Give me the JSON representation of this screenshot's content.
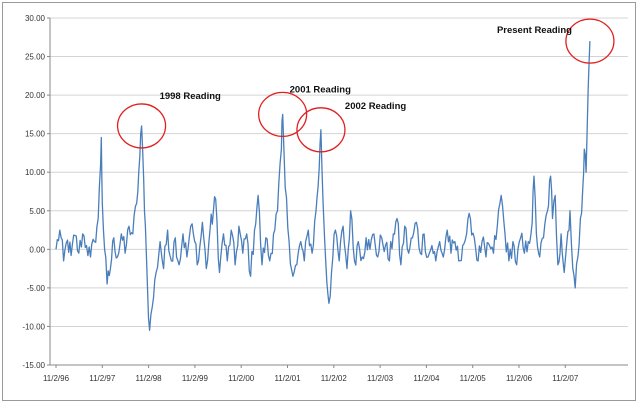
{
  "chart_data": {
    "type": "line",
    "title": "",
    "xlabel": "",
    "ylabel": "",
    "ylim": [
      -15,
      30
    ],
    "y_ticks": [
      "30.00",
      "25.00",
      "20.00",
      "15.00",
      "10.00",
      "5.00",
      "0.00",
      "-5.00",
      "-10.00",
      "-15.00"
    ],
    "x_tick_labels": [
      "11/2/96",
      "11/2/97",
      "11/2/98",
      "11/2/99",
      "11/2/00",
      "11/2/01",
      "11/2/02",
      "11/2/03",
      "11/2/04",
      "11/2/05",
      "11/2/06",
      "11/2/07"
    ],
    "grid": "horizontal",
    "line_color": "#4a7ebb",
    "circle_color": "#e02020",
    "series": [
      {
        "points": [
          [
            "1996-11-02",
            0.0
          ],
          [
            "1996-12-02",
            2.5
          ],
          [
            "1997-01-01",
            -1.5
          ],
          [
            "1997-02-01",
            1.2
          ],
          [
            "1997-03-01",
            -0.8
          ],
          [
            "1997-04-01",
            1.8
          ],
          [
            "1997-05-01",
            -0.5
          ],
          [
            "1997-06-01",
            2.0
          ],
          [
            "1997-07-01",
            0.5
          ],
          [
            "1997-08-01",
            -1.0
          ],
          [
            "1997-09-01",
            1.0
          ],
          [
            "1997-10-01",
            4.0
          ],
          [
            "1997-10-20",
            11.0
          ],
          [
            "1997-10-25",
            14.5
          ],
          [
            "1997-11-02",
            6.0
          ],
          [
            "1997-11-20",
            0.0
          ],
          [
            "1997-12-10",
            -4.5
          ],
          [
            "1998-01-05",
            -2.5
          ],
          [
            "1998-02-01",
            1.5
          ],
          [
            "1998-03-01",
            -1.0
          ],
          [
            "1998-04-01",
            2.0
          ],
          [
            "1998-05-01",
            -0.5
          ],
          [
            "1998-06-01",
            3.0
          ],
          [
            "1998-07-01",
            2.0
          ],
          [
            "1998-08-01",
            6.0
          ],
          [
            "1998-08-25",
            12.0
          ],
          [
            "1998-09-08",
            16.0
          ],
          [
            "1998-09-25",
            9.0
          ],
          [
            "1998-10-08",
            3.0
          ],
          [
            "1998-10-25",
            -5.0
          ],
          [
            "1998-11-10",
            -10.5
          ],
          [
            "1998-12-01",
            -7.5
          ],
          [
            "1999-01-01",
            -3.0
          ],
          [
            "1999-02-01",
            1.0
          ],
          [
            "1999-03-01",
            -2.5
          ],
          [
            "1999-04-01",
            2.5
          ],
          [
            "1999-05-01",
            -1.5
          ],
          [
            "1999-06-01",
            1.5
          ],
          [
            "1999-07-01",
            -2.0
          ],
          [
            "1999-08-01",
            2.0
          ],
          [
            "1999-09-01",
            -1.0
          ],
          [
            "1999-10-01",
            3.0
          ],
          [
            "1999-11-01",
            1.0
          ],
          [
            "1999-12-01",
            -1.5
          ],
          [
            "2000-01-01",
            3.5
          ],
          [
            "2000-02-01",
            -2.5
          ],
          [
            "2000-03-01",
            2.5
          ],
          [
            "2000-04-15",
            6.5
          ],
          [
            "2000-05-15",
            -3.0
          ],
          [
            "2000-06-15",
            2.0
          ],
          [
            "2000-07-15",
            -1.5
          ],
          [
            "2000-08-15",
            2.5
          ],
          [
            "2000-09-15",
            -2.0
          ],
          [
            "2000-10-15",
            3.0
          ],
          [
            "2000-11-15",
            -0.5
          ],
          [
            "2000-12-15",
            2.0
          ],
          [
            "2001-01-15",
            -3.5
          ],
          [
            "2001-02-15",
            2.5
          ],
          [
            "2001-03-15",
            7.0
          ],
          [
            "2001-04-15",
            -2.0
          ],
          [
            "2001-05-15",
            1.5
          ],
          [
            "2001-06-15",
            -1.5
          ],
          [
            "2001-07-15",
            2.0
          ],
          [
            "2001-08-15",
            5.0
          ],
          [
            "2001-09-15",
            13.0
          ],
          [
            "2001-09-25",
            17.5
          ],
          [
            "2001-10-15",
            8.0
          ],
          [
            "2001-11-15",
            1.0
          ],
          [
            "2001-12-15",
            -3.5
          ],
          [
            "2002-01-15",
            -2.0
          ],
          [
            "2002-02-15",
            1.0
          ],
          [
            "2002-03-15",
            -1.5
          ],
          [
            "2002-04-15",
            2.5
          ],
          [
            "2002-05-15",
            -0.5
          ],
          [
            "2002-06-15",
            5.0
          ],
          [
            "2002-07-10",
            10.5
          ],
          [
            "2002-07-24",
            15.5
          ],
          [
            "2002-08-10",
            6.0
          ],
          [
            "2002-09-01",
            -2.0
          ],
          [
            "2002-09-25",
            -7.0
          ],
          [
            "2002-10-15",
            -3.0
          ],
          [
            "2002-11-15",
            2.5
          ],
          [
            "2002-12-15",
            -1.5
          ],
          [
            "2003-01-15",
            3.0
          ],
          [
            "2003-02-15",
            -2.5
          ],
          [
            "2003-03-15",
            5.0
          ],
          [
            "2003-04-15",
            -1.5
          ],
          [
            "2003-05-15",
            1.0
          ],
          [
            "2003-06-15",
            -1.0
          ],
          [
            "2003-07-15",
            1.5
          ],
          [
            "2003-08-15",
            0.0
          ],
          [
            "2003-09-15",
            2.0
          ],
          [
            "2003-10-15",
            -1.0
          ],
          [
            "2003-11-15",
            1.5
          ],
          [
            "2003-12-15",
            0.5
          ],
          [
            "2004-01-15",
            -1.5
          ],
          [
            "2004-02-15",
            2.0
          ],
          [
            "2004-03-15",
            4.0
          ],
          [
            "2004-04-15",
            -2.0
          ],
          [
            "2004-05-15",
            3.0
          ],
          [
            "2004-06-15",
            -0.5
          ],
          [
            "2004-07-15",
            1.5
          ],
          [
            "2004-08-15",
            3.5
          ],
          [
            "2004-09-15",
            -0.5
          ],
          [
            "2004-10-15",
            2.0
          ],
          [
            "2004-11-15",
            -1.0
          ],
          [
            "2004-12-15",
            0.5
          ],
          [
            "2005-01-15",
            -1.5
          ],
          [
            "2005-02-15",
            1.0
          ],
          [
            "2005-03-15",
            -1.0
          ],
          [
            "2005-04-15",
            2.5
          ],
          [
            "2005-05-15",
            -0.5
          ],
          [
            "2005-06-15",
            1.0
          ],
          [
            "2005-07-15",
            -1.5
          ],
          [
            "2005-08-15",
            0.5
          ],
          [
            "2005-09-15",
            2.0
          ],
          [
            "2005-10-15",
            4.0
          ],
          [
            "2005-11-15",
            1.5
          ],
          [
            "2005-12-15",
            -1.5
          ],
          [
            "2006-01-15",
            1.0
          ],
          [
            "2006-02-15",
            -1.0
          ],
          [
            "2006-03-15",
            0.5
          ],
          [
            "2006-04-15",
            -0.5
          ],
          [
            "2006-05-15",
            3.0
          ],
          [
            "2006-06-15",
            7.0
          ],
          [
            "2006-07-15",
            2.0
          ],
          [
            "2006-08-15",
            -1.5
          ],
          [
            "2006-09-15",
            1.0
          ],
          [
            "2006-10-15",
            -2.0
          ],
          [
            "2006-11-15",
            1.5
          ],
          [
            "2006-12-15",
            -0.5
          ],
          [
            "2007-01-15",
            1.0
          ],
          [
            "2007-02-15",
            3.5
          ],
          [
            "2007-03-01",
            9.5
          ],
          [
            "2007-03-20",
            2.0
          ],
          [
            "2007-04-15",
            -1.0
          ],
          [
            "2007-05-15",
            1.5
          ],
          [
            "2007-06-15",
            5.0
          ],
          [
            "2007-07-10",
            9.5
          ],
          [
            "2007-07-25",
            4.0
          ],
          [
            "2007-08-15",
            7.0
          ],
          [
            "2007-09-05",
            -2.0
          ],
          [
            "2007-10-01",
            2.0
          ],
          [
            "2007-10-25",
            -3.0
          ],
          [
            "2007-11-15",
            1.0
          ],
          [
            "2007-12-10",
            5.0
          ],
          [
            "2008-01-01",
            -2.5
          ],
          [
            "2008-01-20",
            -5.0
          ],
          [
            "2008-02-10",
            -1.0
          ],
          [
            "2008-03-01",
            4.0
          ],
          [
            "2008-03-20",
            8.0
          ],
          [
            "2008-04-01",
            13.0
          ],
          [
            "2008-04-15",
            10.0
          ],
          [
            "2008-05-01",
            20.5
          ],
          [
            "2008-05-15",
            27.0
          ]
        ]
      }
    ],
    "annotations": [
      {
        "label": "1998 Reading",
        "x": "1998-09-08",
        "y": 16.0
      },
      {
        "label": "2001 Reading",
        "x": "2001-09-25",
        "y": 17.5
      },
      {
        "label": "2002 Reading",
        "x": "2002-07-24",
        "y": 15.5
      },
      {
        "label": "Present Reading",
        "x": "2008-05-15",
        "y": 27.0
      }
    ]
  }
}
